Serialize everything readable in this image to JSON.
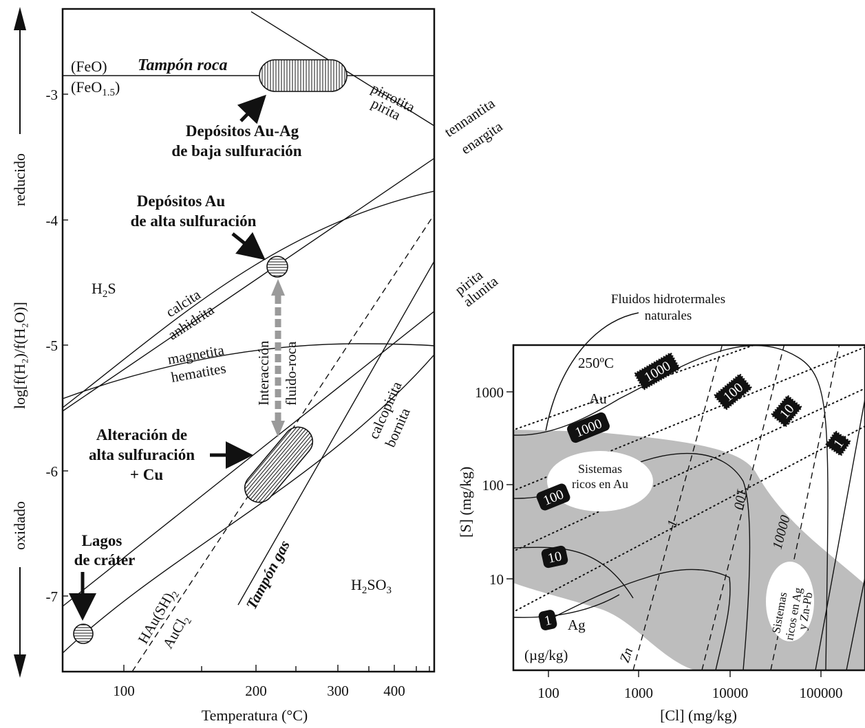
{
  "left_diagram": {
    "y_axis_title": "log[f(H₂)/f(H₂O)]",
    "x_axis_title": "Temperatura (°C)",
    "y_ticks": [
      "-3",
      "-4",
      "-5",
      "-6",
      "-7"
    ],
    "x_ticks": [
      "100",
      "200",
      "300",
      "400"
    ],
    "arrow_top_label": "reducido",
    "arrow_bottom_label": "oxidado",
    "buffer_rock_upper": "(FeO)",
    "buffer_rock_lower_base": "(FeO",
    "buffer_rock_lower_sub": "1.5",
    "buffer_rock_lower_close": ")",
    "buffer_rock_title": "Tampón roca",
    "buffer_gas_title": "Tampón gas",
    "pair_pirrotita": "pirrotita",
    "pair_pirita_1": "pirita",
    "pair_tennantita": "tennantita",
    "pair_enargita": "enargita",
    "pair_calcita": "calcita",
    "pair_anhidrita": "anhidrita",
    "pair_magnetita": "magnetita",
    "pair_hematites": "hematites",
    "pair_pirita_2": "pirita",
    "pair_alunita": "alunita",
    "pair_calcopirita": "calcopirita",
    "pair_bornita": "bornita",
    "h2s_base": "H",
    "h2s_sub": "2",
    "h2s_end": "S",
    "h2so3_base": "H",
    "h2so3_sub": "2",
    "h2so3_mid": "SO",
    "h2so3_sub2": "3",
    "hau_base": "HAu(SH)",
    "hau_sub": "2",
    "aucl_base": "AuCl",
    "aucl_sub": "2",
    "interaction_line1": "Interacción",
    "interaction_line2": "fluido-roca",
    "deposit_low_line1": "Depósitos Au-Ag",
    "deposit_low_line2": "de baja sulfuración",
    "deposit_high_line1": "Depósitos Au",
    "deposit_high_line2": "de alta sulfuración",
    "alteration_line1": "Alteración de",
    "alteration_line2": "alta sulfuración",
    "alteration_line3": "+ Cu",
    "lakes_line1": "Lagos",
    "lakes_line2": "de cráter"
  },
  "right_diagram": {
    "header_line1": "Fluidos hidrotermales",
    "header_line2": "naturales",
    "temperature": "250ºC",
    "y_axis_title": "[S] (mg/kg)",
    "x_axis_title": "[Cl] (mg/kg)",
    "y_ticks": [
      "1000",
      "100",
      "10"
    ],
    "x_ticks": [
      "100",
      "1000",
      "10000",
      "100000"
    ],
    "au_label": "Au",
    "ag_label": "Ag",
    "zn_label": "Zn",
    "unit_label": "(µg/kg)",
    "au_contours": [
      "1000",
      "100",
      "10",
      "1"
    ],
    "ag_contours": [
      "1000",
      "100",
      "10",
      "1"
    ],
    "zn_contours": [
      "1",
      "100",
      "10000"
    ],
    "au_region_line1": "Sistemas",
    "au_region_line2": "ricos en Au",
    "ag_region_line1": "Sistemas",
    "ag_region_line2": "ricos en Ag",
    "ag_region_line3": "y Zn-Pb"
  }
}
